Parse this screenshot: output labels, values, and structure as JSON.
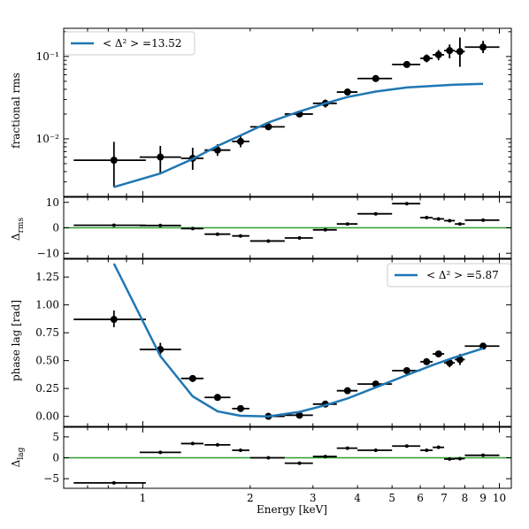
{
  "chart_data": [
    {
      "type": "scatter",
      "panel": "rms",
      "xscale": "log",
      "yscale": "log",
      "xlim": [
        0.6,
        10.8
      ],
      "ylim": [
        0.002,
        0.22
      ],
      "ylabel": "fractional rms",
      "yticks": [
        0.01,
        0.1
      ],
      "ytick_labels": [
        "10⁻²",
        "10⁻¹"
      ],
      "legend": {
        "label": "< Δ² > =13.52",
        "placement": "top-left",
        "color": "#1f77b4"
      },
      "series": [
        {
          "kind": "points",
          "color": "#000000",
          "points": [
            {
              "x": 0.83,
              "y": 0.0055,
              "xlo": 0.64,
              "xhi": 1.02,
              "ylo": 0.0026,
              "yhi": 0.0092
            },
            {
              "x": 1.12,
              "y": 0.006,
              "xlo": 0.98,
              "xhi": 1.28,
              "ylo": 0.0038,
              "yhi": 0.0082
            },
            {
              "x": 1.38,
              "y": 0.0058,
              "xlo": 1.28,
              "xhi": 1.48,
              "ylo": 0.0042,
              "yhi": 0.0078
            },
            {
              "x": 1.62,
              "y": 0.0073,
              "xlo": 1.49,
              "xhi": 1.76,
              "ylo": 0.0062,
              "yhi": 0.0086
            },
            {
              "x": 1.88,
              "y": 0.0093,
              "xlo": 1.78,
              "xhi": 1.99,
              "ylo": 0.0079,
              "yhi": 0.0109
            },
            {
              "x": 2.25,
              "y": 0.014,
              "xlo": 2.0,
              "xhi": 2.5,
              "ylo": 0.0132,
              "yhi": 0.0148
            },
            {
              "x": 2.75,
              "y": 0.02,
              "xlo": 2.5,
              "xhi": 3.0,
              "ylo": 0.019,
              "yhi": 0.021
            },
            {
              "x": 3.25,
              "y": 0.027,
              "xlo": 3.0,
              "xhi": 3.5,
              "ylo": 0.024,
              "yhi": 0.03
            },
            {
              "x": 3.75,
              "y": 0.037,
              "xlo": 3.5,
              "xhi": 4.0,
              "ylo": 0.035,
              "yhi": 0.039
            },
            {
              "x": 4.5,
              "y": 0.054,
              "xlo": 4.0,
              "xhi": 5.0,
              "ylo": 0.052,
              "yhi": 0.056
            },
            {
              "x": 5.5,
              "y": 0.08,
              "xlo": 5.0,
              "xhi": 6.0,
              "ylo": 0.076,
              "yhi": 0.084
            },
            {
              "x": 6.25,
              "y": 0.095,
              "xlo": 6.0,
              "xhi": 6.5,
              "ylo": 0.085,
              "yhi": 0.106
            },
            {
              "x": 6.75,
              "y": 0.105,
              "xlo": 6.5,
              "xhi": 7.0,
              "ylo": 0.09,
              "yhi": 0.12
            },
            {
              "x": 7.25,
              "y": 0.118,
              "xlo": 7.0,
              "xhi": 7.5,
              "ylo": 0.095,
              "yhi": 0.14
            },
            {
              "x": 7.75,
              "y": 0.115,
              "xlo": 7.5,
              "xhi": 8.0,
              "ylo": 0.075,
              "yhi": 0.17
            },
            {
              "x": 9.0,
              "y": 0.13,
              "xlo": 8.0,
              "xhi": 10.0,
              "ylo": 0.11,
              "yhi": 0.155
            }
          ]
        },
        {
          "kind": "model",
          "color": "#1f77b4",
          "x": [
            0.83,
            1.12,
            1.38,
            1.62,
            1.88,
            2.25,
            2.75,
            3.25,
            3.75,
            4.5,
            5.5,
            6.5,
            7.5,
            9.0
          ],
          "y": [
            0.0026,
            0.0038,
            0.0057,
            0.0082,
            0.011,
            0.0158,
            0.0215,
            0.027,
            0.0322,
            0.0375,
            0.042,
            0.044,
            0.0455,
            0.0465
          ]
        }
      ]
    },
    {
      "type": "scatter",
      "panel": "rms-residuals",
      "xscale": "log",
      "xlim": [
        0.6,
        10.8
      ],
      "ylim": [
        -12,
        12
      ],
      "ylabel": "Δ",
      "ylabel_sub": "rms",
      "yticks": [
        -10,
        0,
        10
      ],
      "ytick_labels": [
        "−10",
        "0",
        "10"
      ],
      "zero_line_color": "#2ca02c",
      "series": [
        {
          "kind": "points",
          "color": "#000000",
          "points": [
            {
              "x": 0.83,
              "y": 1.0,
              "xlo": 0.64,
              "xhi": 1.02
            },
            {
              "x": 1.12,
              "y": 0.9,
              "xlo": 0.98,
              "xhi": 1.28
            },
            {
              "x": 1.38,
              "y": -0.3,
              "xlo": 1.28,
              "xhi": 1.48
            },
            {
              "x": 1.62,
              "y": -2.5,
              "xlo": 1.49,
              "xhi": 1.76
            },
            {
              "x": 1.88,
              "y": -3.2,
              "xlo": 1.78,
              "xhi": 1.99
            },
            {
              "x": 2.25,
              "y": -5.2,
              "xlo": 2.0,
              "xhi": 2.5
            },
            {
              "x": 2.75,
              "y": -4.0,
              "xlo": 2.5,
              "xhi": 3.0
            },
            {
              "x": 3.25,
              "y": -0.8,
              "xlo": 3.0,
              "xhi": 3.5
            },
            {
              "x": 3.75,
              "y": 1.5,
              "xlo": 3.5,
              "xhi": 4.0
            },
            {
              "x": 4.5,
              "y": 5.5,
              "xlo": 4.0,
              "xhi": 5.0
            },
            {
              "x": 5.5,
              "y": 9.5,
              "xlo": 5.0,
              "xhi": 6.0
            },
            {
              "x": 6.25,
              "y": 4.0,
              "xlo": 6.0,
              "xhi": 6.5
            },
            {
              "x": 6.75,
              "y": 3.5,
              "xlo": 6.5,
              "xhi": 7.0
            },
            {
              "x": 7.25,
              "y": 2.8,
              "xlo": 7.0,
              "xhi": 7.5
            },
            {
              "x": 7.75,
              "y": 1.5,
              "xlo": 7.5,
              "xhi": 8.0
            },
            {
              "x": 9.0,
              "y": 3.0,
              "xlo": 8.0,
              "xhi": 10.0
            }
          ]
        }
      ]
    },
    {
      "type": "scatter",
      "panel": "lag",
      "xscale": "log",
      "xlim": [
        0.6,
        10.8
      ],
      "ylim": [
        -0.09,
        1.41
      ],
      "ylabel": "phase lag [rad]",
      "yticks": [
        0.0,
        0.25,
        0.5,
        0.75,
        1.0,
        1.25
      ],
      "ytick_labels": [
        "0.00",
        "0.25",
        "0.50",
        "0.75",
        "1.00",
        "1.25"
      ],
      "legend": {
        "label": "< Δ² > =5.87",
        "placement": "top-right",
        "color": "#1f77b4"
      },
      "series": [
        {
          "kind": "points",
          "color": "#000000",
          "points": [
            {
              "x": 0.83,
              "y": 0.87,
              "xlo": 0.64,
              "xhi": 1.02,
              "ylo": 0.8,
              "yhi": 0.95
            },
            {
              "x": 1.12,
              "y": 0.6,
              "xlo": 0.98,
              "xhi": 1.28,
              "ylo": 0.55,
              "yhi": 0.66
            },
            {
              "x": 1.38,
              "y": 0.34,
              "xlo": 1.28,
              "xhi": 1.48,
              "ylo": 0.31,
              "yhi": 0.37
            },
            {
              "x": 1.62,
              "y": 0.17,
              "xlo": 1.49,
              "xhi": 1.76,
              "ylo": 0.15,
              "yhi": 0.19
            },
            {
              "x": 1.88,
              "y": 0.07,
              "xlo": 1.78,
              "xhi": 1.99,
              "ylo": 0.055,
              "yhi": 0.085
            },
            {
              "x": 2.25,
              "y": 0.0,
              "xlo": 2.0,
              "xhi": 2.5,
              "ylo": -0.01,
              "yhi": 0.01
            },
            {
              "x": 2.75,
              "y": 0.01,
              "xlo": 2.5,
              "xhi": 3.0,
              "ylo": 0.0,
              "yhi": 0.02
            },
            {
              "x": 3.25,
              "y": 0.11,
              "xlo": 3.0,
              "xhi": 3.5,
              "ylo": 0.1,
              "yhi": 0.12
            },
            {
              "x": 3.75,
              "y": 0.23,
              "xlo": 3.5,
              "xhi": 4.0,
              "ylo": 0.21,
              "yhi": 0.245
            },
            {
              "x": 4.5,
              "y": 0.29,
              "xlo": 4.0,
              "xhi": 5.0,
              "ylo": 0.28,
              "yhi": 0.3
            },
            {
              "x": 5.5,
              "y": 0.41,
              "xlo": 5.0,
              "xhi": 6.0,
              "ylo": 0.395,
              "yhi": 0.425
            },
            {
              "x": 6.25,
              "y": 0.49,
              "xlo": 6.0,
              "xhi": 6.5,
              "ylo": 0.47,
              "yhi": 0.51
            },
            {
              "x": 6.75,
              "y": 0.56,
              "xlo": 6.5,
              "xhi": 7.0,
              "ylo": 0.535,
              "yhi": 0.585
            },
            {
              "x": 7.25,
              "y": 0.48,
              "xlo": 7.0,
              "xhi": 7.5,
              "ylo": 0.44,
              "yhi": 0.52
            },
            {
              "x": 7.75,
              "y": 0.51,
              "xlo": 7.5,
              "xhi": 8.0,
              "ylo": 0.46,
              "yhi": 0.56
            },
            {
              "x": 9.0,
              "y": 0.63,
              "xlo": 8.0,
              "xhi": 10.0,
              "ylo": 0.6,
              "yhi": 0.66
            }
          ]
        },
        {
          "kind": "model",
          "color": "#1f77b4",
          "x": [
            0.83,
            1.12,
            1.38,
            1.62,
            1.88,
            2.25,
            2.75,
            3.25,
            3.75,
            4.5,
            5.5,
            6.5,
            7.5,
            9.0
          ],
          "y": [
            1.37,
            0.54,
            0.18,
            0.045,
            0.005,
            0.0,
            0.04,
            0.1,
            0.16,
            0.26,
            0.37,
            0.46,
            0.53,
            0.61
          ]
        }
      ]
    },
    {
      "type": "scatter",
      "panel": "lag-residuals",
      "xscale": "log",
      "xlim": [
        0.6,
        10.8
      ],
      "ylim": [
        -7.3,
        7.3
      ],
      "xlabel": "Energy [keV]",
      "xticks": [
        1,
        2,
        3,
        4,
        5,
        6,
        7,
        8,
        9,
        10
      ],
      "xtick_labels": [
        "1",
        "2",
        "3",
        "4",
        "5",
        "6",
        "7",
        "8",
        "9",
        "10"
      ],
      "ylabel": "Δ",
      "ylabel_sub": "lag",
      "yticks": [
        -5,
        0,
        5
      ],
      "ytick_labels": [
        "−5",
        "0",
        "5"
      ],
      "zero_line_color": "#2ca02c",
      "series": [
        {
          "kind": "points",
          "color": "#000000",
          "points": [
            {
              "x": 0.83,
              "y": -6.0,
              "xlo": 0.64,
              "xhi": 1.02
            },
            {
              "x": 1.12,
              "y": 1.3,
              "xlo": 0.98,
              "xhi": 1.28
            },
            {
              "x": 1.38,
              "y": 3.4,
              "xlo": 1.28,
              "xhi": 1.48
            },
            {
              "x": 1.62,
              "y": 3.1,
              "xlo": 1.49,
              "xhi": 1.76
            },
            {
              "x": 1.88,
              "y": 1.8,
              "xlo": 1.78,
              "xhi": 1.99
            },
            {
              "x": 2.25,
              "y": 0.0,
              "xlo": 2.0,
              "xhi": 2.5
            },
            {
              "x": 2.75,
              "y": -1.3,
              "xlo": 2.5,
              "xhi": 3.0
            },
            {
              "x": 3.25,
              "y": 0.3,
              "xlo": 3.0,
              "xhi": 3.5
            },
            {
              "x": 3.75,
              "y": 2.3,
              "xlo": 3.5,
              "xhi": 4.0
            },
            {
              "x": 4.5,
              "y": 1.8,
              "xlo": 4.0,
              "xhi": 5.0
            },
            {
              "x": 5.5,
              "y": 2.8,
              "xlo": 5.0,
              "xhi": 6.0
            },
            {
              "x": 6.25,
              "y": 1.8,
              "xlo": 6.0,
              "xhi": 6.5
            },
            {
              "x": 6.75,
              "y": 2.5,
              "xlo": 6.5,
              "xhi": 7.0
            },
            {
              "x": 7.25,
              "y": -0.3,
              "xlo": 7.0,
              "xhi": 7.5
            },
            {
              "x": 7.75,
              "y": -0.2,
              "xlo": 7.5,
              "xhi": 8.0
            },
            {
              "x": 9.0,
              "y": 0.6,
              "xlo": 8.0,
              "xhi": 10.0
            }
          ]
        }
      ]
    }
  ]
}
